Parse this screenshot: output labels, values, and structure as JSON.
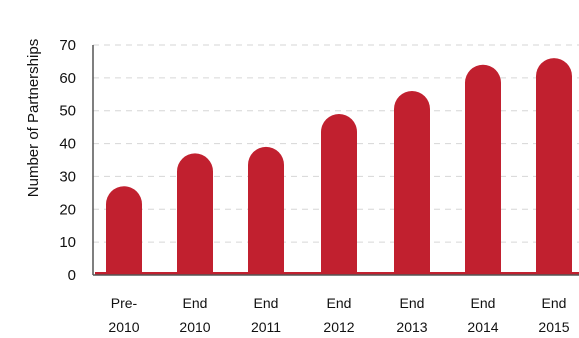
{
  "chart_data": {
    "type": "bar",
    "title": "",
    "xlabel": "",
    "ylabel": "Number of Partnerships",
    "categories": [
      [
        "Pre-",
        "2010"
      ],
      [
        "End",
        "2010"
      ],
      [
        "End",
        "2011"
      ],
      [
        "End",
        "2012"
      ],
      [
        "End",
        "2013"
      ],
      [
        "End",
        "2014"
      ],
      [
        "End",
        "2015"
      ]
    ],
    "values": [
      27,
      37,
      39,
      49,
      56,
      64,
      66
    ],
    "ylim": [
      0,
      70
    ],
    "yticks": [
      0,
      10,
      20,
      30,
      40,
      50,
      60,
      70
    ],
    "grid": true,
    "bar_color": "#c1202f"
  }
}
